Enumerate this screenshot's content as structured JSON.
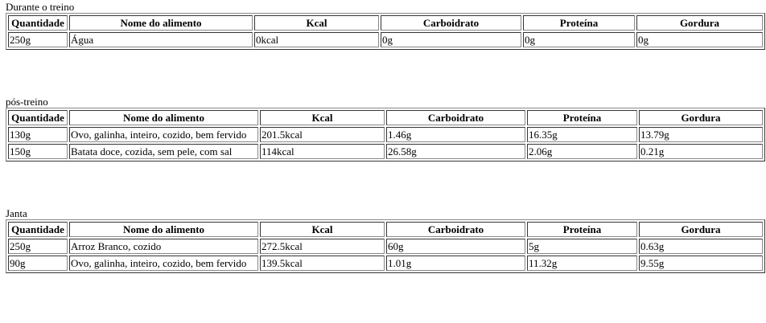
{
  "sections": [
    {
      "caption": "Durante o treino",
      "headers": [
        "Quantidade",
        "Nome do alimento",
        "Kcal",
        "Carboidrato",
        "Proteína",
        "Gordura"
      ],
      "rows": [
        [
          "250g",
          "Água",
          "0kcal",
          "0g",
          "0g",
          "0g"
        ]
      ]
    },
    {
      "caption": "pós-treino",
      "headers": [
        "Quantidade",
        "Nome do alimento",
        "Kcal",
        "Carboidrato",
        "Proteína",
        "Gordura"
      ],
      "rows": [
        [
          "130g",
          "Ovo, galinha, inteiro, cozido, bem fervido",
          "201.5kcal",
          "1.46g",
          "16.35g",
          "13.79g"
        ],
        [
          "150g",
          "Batata doce, cozida, sem pele, com sal",
          "114kcal",
          "26.58g",
          "2.06g",
          "0.21g"
        ]
      ]
    },
    {
      "caption": "Janta",
      "headers": [
        "Quantidade",
        "Nome do alimento",
        "Kcal",
        "Carboidrato",
        "Proteína",
        "Gordura"
      ],
      "rows": [
        [
          "250g",
          "Arroz Branco, cozido",
          "272.5kcal",
          "60g",
          "5g",
          "0.63g"
        ],
        [
          "90g",
          "Ovo, galinha, inteiro, cozido, bem fervido",
          "139.5kcal",
          "1.01g",
          "11.32g",
          "9.55g"
        ]
      ]
    }
  ]
}
